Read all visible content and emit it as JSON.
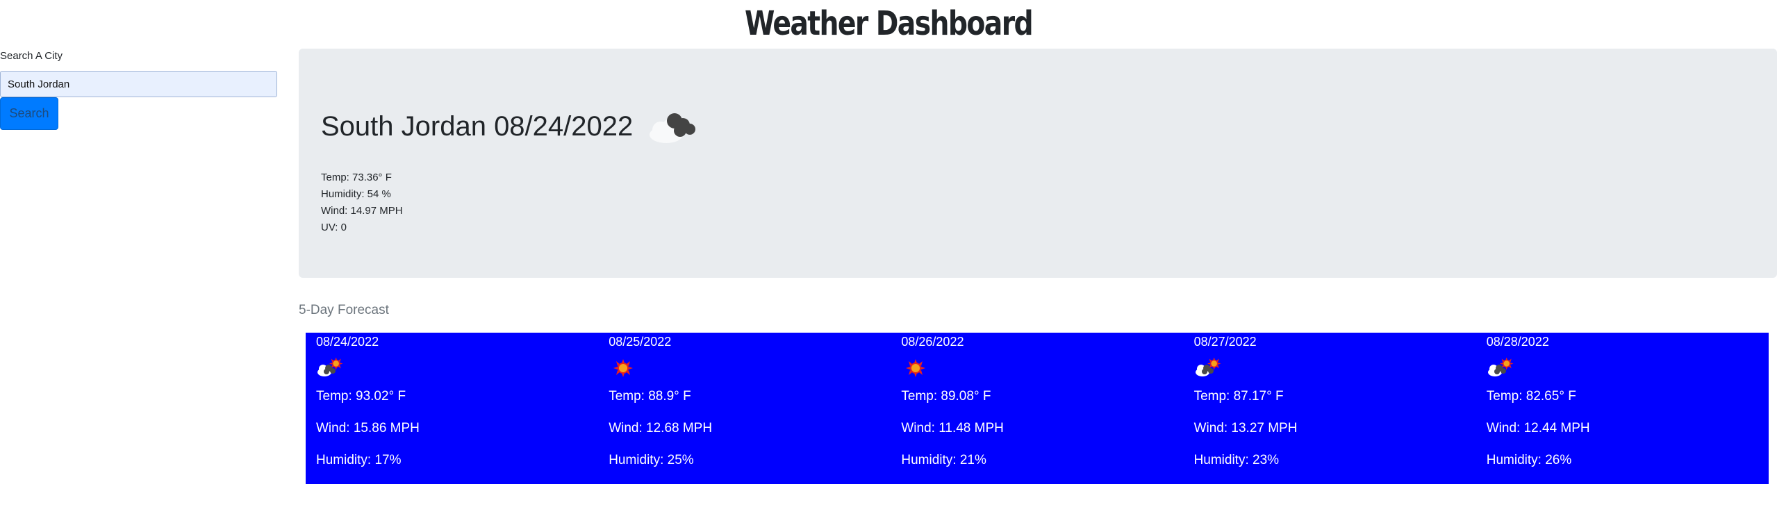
{
  "header": {
    "title": "Weather Dashboard"
  },
  "search": {
    "label": "Search A City",
    "value": "South Jordan",
    "button_label": "Search"
  },
  "current": {
    "title": "South Jordan 08/24/2022",
    "icon": "clouds-icon",
    "temp": "Temp: 73.36° F",
    "humidity": "Humidity: 54 %",
    "wind": "Wind: 14.97 MPH",
    "uv": "UV: 0"
  },
  "forecast": {
    "heading": "5-Day Forecast",
    "background": "#0000ff",
    "days": [
      {
        "date": "08/24/2022",
        "icon": "cloud-sun-icon",
        "temp": "Temp: 93.02° F",
        "wind": "Wind: 15.86 MPH",
        "humidity": "Humidity: 17%"
      },
      {
        "date": "08/25/2022",
        "icon": "sun-icon",
        "temp": "Temp: 88.9° F",
        "wind": "Wind: 12.68 MPH",
        "humidity": "Humidity: 25%"
      },
      {
        "date": "08/26/2022",
        "icon": "sun-icon",
        "temp": "Temp: 89.08° F",
        "wind": "Wind: 11.48 MPH",
        "humidity": "Humidity: 21%"
      },
      {
        "date": "08/27/2022",
        "icon": "cloud-sun-icon",
        "temp": "Temp: 87.17° F",
        "wind": "Wind: 13.27 MPH",
        "humidity": "Humidity: 23%"
      },
      {
        "date": "08/28/2022",
        "icon": "cloud-sun-icon",
        "temp": "Temp: 82.65° F",
        "wind": "Wind: 12.44 MPH",
        "humidity": "Humidity: 26%"
      }
    ]
  }
}
